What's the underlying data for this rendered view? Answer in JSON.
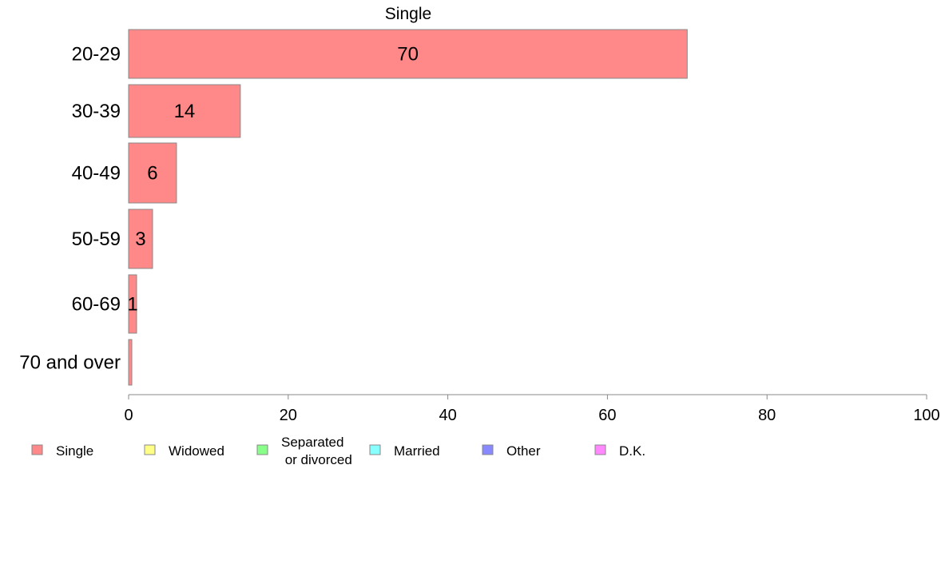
{
  "chart_data": {
    "type": "bar",
    "orientation": "horizontal",
    "title": "Single",
    "categories": [
      "20-29",
      "30-39",
      "40-49",
      "50-59",
      "60-69",
      "70 and over"
    ],
    "values": [
      70,
      14,
      6,
      3,
      1,
      0.4
    ],
    "value_labels": [
      "70",
      "14",
      "6",
      "3",
      "1",
      ""
    ],
    "xlim": [
      0,
      100
    ],
    "xticks": [
      0,
      20,
      40,
      60,
      80,
      100
    ],
    "grid": false,
    "bar_color": "#ff8888",
    "bar_edge_color": "#888888",
    "legend": [
      {
        "label": "Single",
        "color": "#ff8888"
      },
      {
        "label": "Widowed",
        "color": "#ffff88"
      },
      {
        "label": "Separated\n or divorced",
        "color": "#88ff88"
      },
      {
        "label": "Married",
        "color": "#88ffff"
      },
      {
        "label": "Other",
        "color": "#8888ff"
      },
      {
        "label": "D.K.",
        "color": "#ff88ff"
      }
    ],
    "legend_position": "bottom-left"
  }
}
